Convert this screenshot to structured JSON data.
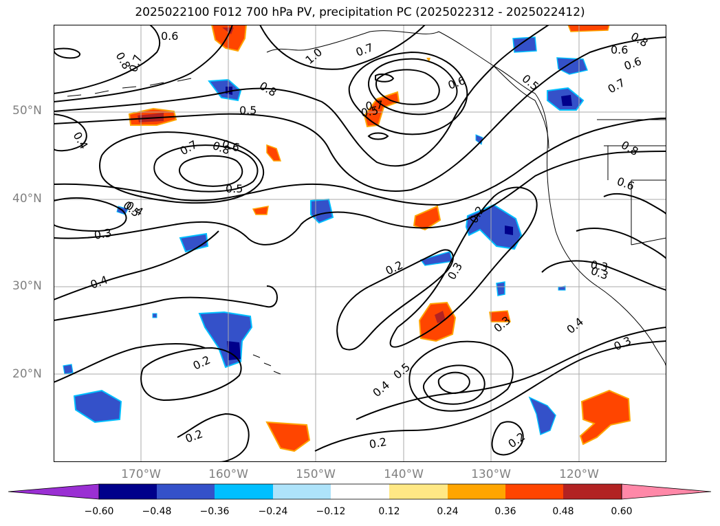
{
  "title": "2025022100 F012 700 hPa PV, precipitation PC (2025022312 - 2025022412)",
  "map": {
    "lat_labels": [
      "50°N",
      "40°N",
      "30°N",
      "20°N"
    ],
    "lon_labels": [
      "170°W",
      "160°W",
      "150°W",
      "140°W",
      "130°W",
      "120°W"
    ],
    "contour_labels": [
      "0.6",
      "0.8",
      "0.7",
      "1.0",
      "0.7",
      "0.8",
      "0.6",
      "0.8",
      "0.5",
      "0.5",
      "0.6",
      "0.7",
      "0.4",
      "0.5",
      "0.7",
      "0.6",
      "0.5",
      "0.4",
      "0.3",
      "0.4",
      "0.2",
      "0.2",
      "0.3",
      "0.3",
      "0.2",
      "0.4",
      "0.5",
      "0.2",
      "0.2",
      "0.3",
      "0.4",
      "0.3",
      "0.8",
      "0.6",
      "0.2",
      "0.6",
      "0.7",
      "0.8",
      "0.5",
      "0.3"
    ],
    "grid": true,
    "colors": {
      "coast": "#000000",
      "grid": "#aaaaaa",
      "lat_lon_labels": "#808080"
    }
  },
  "colorbar": {
    "tick_labels": [
      "−0.60",
      "−0.48",
      "−0.36",
      "−0.24",
      "−0.12",
      "0.12",
      "0.24",
      "0.36",
      "0.48",
      "0.60"
    ],
    "levels": [
      -0.6,
      -0.48,
      -0.36,
      -0.24,
      -0.12,
      0.12,
      0.24,
      0.36,
      0.48,
      0.6
    ],
    "colors": [
      "#9a2fd3",
      "#00008b",
      "#3451c9",
      "#00bfff",
      "#aee3fa",
      "#ffffff",
      "#ffe885",
      "#ffa500",
      "#ff4500",
      "#b22222",
      "#ff88a8"
    ],
    "extend": "both"
  }
}
